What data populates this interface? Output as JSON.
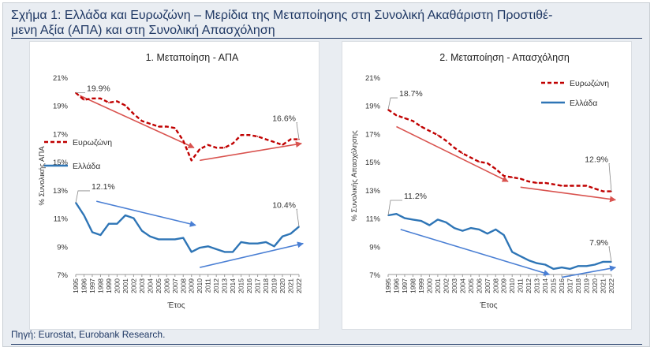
{
  "title": "Σχήμα 1: Ελλάδα και Ευρωζώνη – Μερίδια της Μεταποίησης στη Συνολική Ακαθάριστη Προστιθέ-μενη Αξία (ΑΠΑ) και στη Συνολική Απασχόληση",
  "title_lines": [
    "Σχήμα 1: Ελλάδα και Ευρωζώνη – Μερίδια της Μεταποίησης στη Συνολική Ακαθάριστη Προστιθέ-",
    "μενη Αξία (ΑΠΑ) και στη Συνολική Απασχόληση"
  ],
  "source": "Πηγή: Eurostat, Eurobank Research.",
  "colors": {
    "eurozone": "#c00000",
    "greece": "#2e75b6",
    "trend_eurozone": "#d9534f",
    "trend_greece": "#4a7fd4",
    "title": "#1f3864"
  },
  "chart_data": [
    {
      "type": "line",
      "title": "1. Μεταποίηση - ΑΠΑ",
      "xlabel": "Έτος",
      "ylabel": "% Συνολικής ΑΠΑ",
      "ylim": [
        7,
        21
      ],
      "yticks": [
        "7%",
        "9%",
        "11%",
        "13%",
        "15%",
        "17%",
        "19%",
        "21%"
      ],
      "x": [
        "1995",
        "1996",
        "1997",
        "1998",
        "1999",
        "2000",
        "2001",
        "2002",
        "2003",
        "2004",
        "2005",
        "2006",
        "2007",
        "2008",
        "2009",
        "2010",
        "2011",
        "2012",
        "2013",
        "2014",
        "2015",
        "2016",
        "2017",
        "2018",
        "2019",
        "2020",
        "2021",
        "2022"
      ],
      "legend_position": "left",
      "series": [
        {
          "name": "Ευρωζώνη",
          "style": "dashed",
          "values": [
            19.9,
            19.4,
            19.5,
            19.5,
            19.2,
            19.3,
            19.0,
            18.4,
            17.9,
            17.7,
            17.5,
            17.5,
            17.4,
            16.5,
            15.1,
            15.9,
            16.2,
            16.0,
            16.0,
            16.3,
            16.9,
            16.9,
            16.8,
            16.6,
            16.4,
            16.2,
            16.6,
            16.6
          ]
        },
        {
          "name": "Ελλάδα",
          "style": "solid",
          "values": [
            12.1,
            11.2,
            10.0,
            9.8,
            10.6,
            10.6,
            11.2,
            11.0,
            10.1,
            9.7,
            9.5,
            9.5,
            9.5,
            9.6,
            8.6,
            8.9,
            9.0,
            8.8,
            8.6,
            8.6,
            9.3,
            9.2,
            9.2,
            9.3,
            9.0,
            9.7,
            9.9,
            10.4
          ]
        }
      ],
      "annotations": [
        "19.9%",
        "16.6%",
        "12.1%",
        "10.4%"
      ]
    },
    {
      "type": "line",
      "title": "2. Μεταποίηση - Απασχόληση",
      "xlabel": "Έτος",
      "ylabel": "% Συνολικής Απασχόλησης",
      "ylim": [
        7,
        21
      ],
      "yticks": [
        "7%",
        "9%",
        "11%",
        "13%",
        "15%",
        "17%",
        "19%",
        "21%"
      ],
      "x": [
        "1995",
        "1996",
        "1997",
        "1998",
        "1999",
        "2000",
        "2001",
        "2002",
        "2003",
        "2004",
        "2005",
        "2006",
        "2007",
        "2008",
        "2009",
        "2010",
        "2011",
        "2012",
        "2013",
        "2014",
        "2015",
        "2016",
        "2017",
        "2018",
        "2019",
        "2020",
        "2021",
        "2022"
      ],
      "legend_position": "top-right",
      "series": [
        {
          "name": "Ευρωζώνη",
          "style": "dashed",
          "values": [
            18.7,
            18.3,
            18.1,
            17.9,
            17.5,
            17.2,
            16.9,
            16.5,
            16.0,
            15.6,
            15.3,
            15.0,
            14.9,
            14.5,
            14.0,
            13.9,
            13.8,
            13.6,
            13.5,
            13.5,
            13.4,
            13.3,
            13.3,
            13.3,
            13.3,
            13.1,
            12.9,
            12.9
          ]
        },
        {
          "name": "Ελλάδα",
          "style": "solid",
          "values": [
            11.2,
            11.3,
            11.0,
            10.9,
            10.8,
            10.5,
            10.9,
            10.7,
            10.3,
            10.1,
            10.3,
            10.2,
            9.9,
            10.2,
            9.8,
            8.6,
            8.3,
            8.0,
            7.8,
            7.7,
            7.4,
            7.5,
            7.4,
            7.6,
            7.6,
            7.7,
            7.9,
            7.9
          ]
        }
      ],
      "annotations": [
        "18.7%",
        "12.9%",
        "11.2%",
        "7.9%"
      ]
    }
  ]
}
